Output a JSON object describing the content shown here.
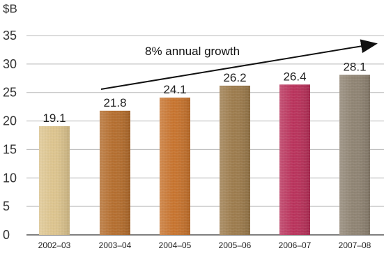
{
  "chart_data": {
    "type": "bar",
    "categories": [
      "2002–03",
      "2003–04",
      "2004–05",
      "2005–06",
      "2006–07",
      "2007–08"
    ],
    "values": [
      19.1,
      21.8,
      24.1,
      26.2,
      26.4,
      28.1
    ],
    "data_labels": [
      "19.1",
      "21.8",
      "24.1",
      "26.2",
      "26.4",
      "28.1"
    ],
    "title": "",
    "xlabel": "",
    "ylabel": "$B",
    "ylim": [
      0,
      35
    ],
    "yticks": [
      0,
      5,
      10,
      15,
      20,
      25,
      30,
      35
    ],
    "ytick_labels": [
      "0",
      "5",
      "10",
      "15",
      "20",
      "25",
      "30",
      "35"
    ],
    "grid": true,
    "annotation": "8% annual growth",
    "colors": {
      "bars": [
        "#ddc48d",
        "#b46c2b",
        "#c7722b",
        "#9c7a4a",
        "#b92f59",
        "#8e8271"
      ],
      "grid": "#b8b8b8",
      "axis": "#333333",
      "arrow": "#111111"
    }
  }
}
